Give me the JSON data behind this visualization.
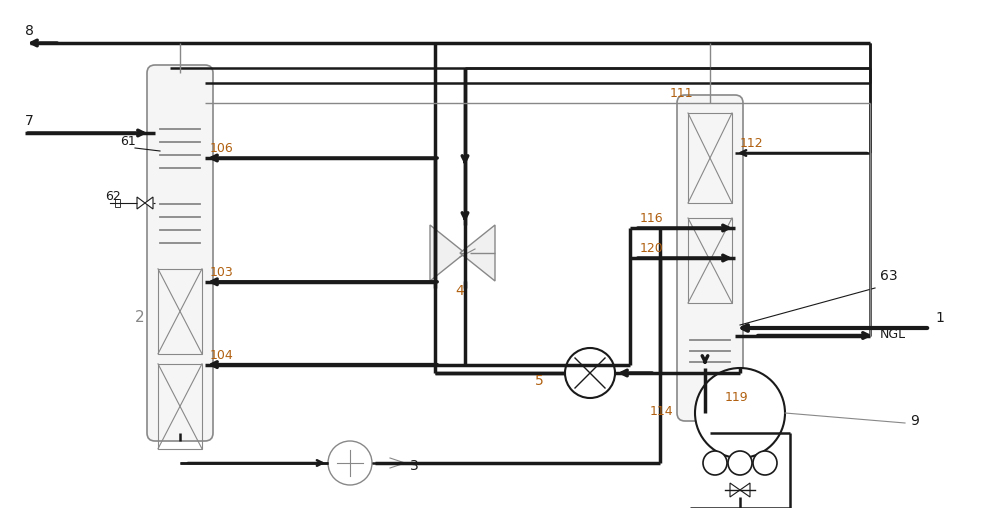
{
  "bg_color": "#ffffff",
  "lc": "#1a1a1a",
  "gc": "#888888",
  "oc": "#b06010",
  "figsize": [
    10.0,
    5.08
  ],
  "dpi": 100,
  "xlim": [
    0,
    100
  ],
  "ylim": [
    0,
    50.8
  ]
}
